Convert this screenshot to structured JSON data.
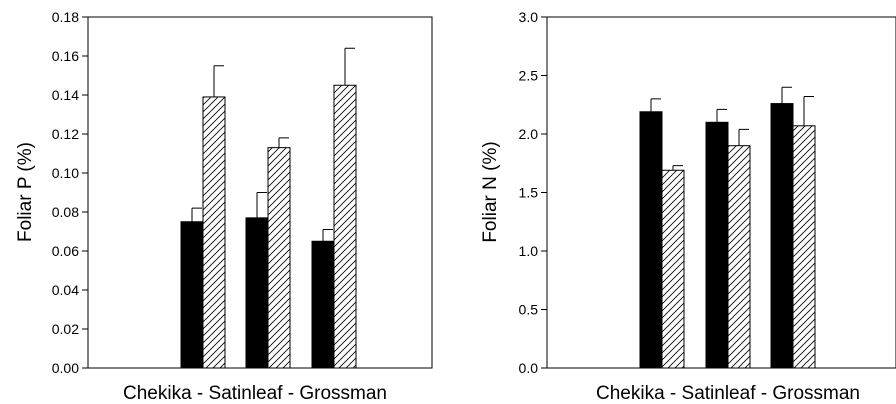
{
  "chart_data": [
    {
      "type": "bar",
      "xlabel": "Chekika - Satinleaf - Grossman",
      "ylabel": "Foliar P (%)",
      "ylim": [
        0,
        0.18
      ],
      "yticks": [
        "0.00",
        "0.02",
        "0.04",
        "0.06",
        "0.08",
        "0.10",
        "0.12",
        "0.14",
        "0.16",
        "0.18"
      ],
      "categories": [
        "Chekika",
        "Satinleaf",
        "Grossman"
      ],
      "grid": false,
      "series": [
        {
          "fill": "solid",
          "color": "#000000",
          "values": [
            0.075,
            0.077,
            0.065
          ],
          "errors": [
            0.007,
            0.013,
            0.006
          ]
        },
        {
          "fill": "hatched",
          "color": "#ffffff",
          "values": [
            0.139,
            0.113,
            0.145
          ],
          "errors": [
            0.016,
            0.005,
            0.019
          ]
        }
      ]
    },
    {
      "type": "bar",
      "xlabel": "Chekika - Satinleaf - Grossman",
      "ylabel": "Foliar N (%)",
      "ylim": [
        0,
        3.0
      ],
      "yticks": [
        "0.0",
        "0.5",
        "1.0",
        "1.5",
        "2.0",
        "2.5",
        "3.0"
      ],
      "categories": [
        "Chekika",
        "Satinleaf",
        "Grossman"
      ],
      "grid": false,
      "series": [
        {
          "fill": "solid",
          "color": "#000000",
          "values": [
            2.19,
            2.1,
            2.26
          ],
          "errors": [
            0.11,
            0.11,
            0.14
          ]
        },
        {
          "fill": "hatched",
          "color": "#ffffff",
          "values": [
            1.69,
            1.9,
            2.07
          ],
          "errors": [
            0.04,
            0.14,
            0.25
          ]
        }
      ]
    }
  ]
}
